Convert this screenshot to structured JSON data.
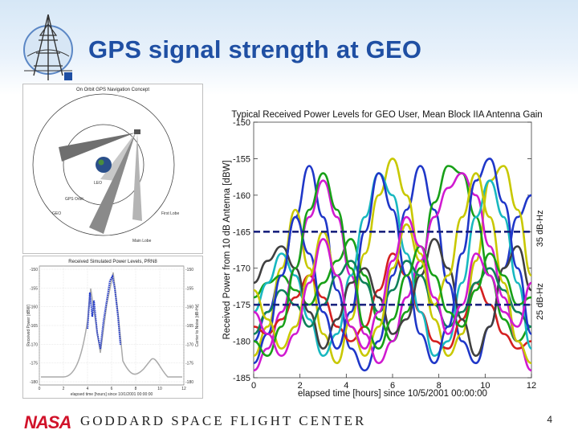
{
  "slide": {
    "title": "GPS signal strength at GEO",
    "footer_org": "GODDARD SPACE FLIGHT CENTER",
    "footer_logo": "NASA",
    "page_number": "4"
  },
  "panels": {
    "orbit_title": "On Orbit GPS Navigation Concept",
    "orbit_labels": [
      "LEO",
      "GPS Orbit",
      "GEO",
      "First Lobe",
      "Main Lobe"
    ],
    "sim_title": "Received Simulated Power Levels, PRN8",
    "sim_xlabel": "elapsed time [hours] since 10/1/2001 00:00:00",
    "sim_ylabel_left": "Received Power [dBW]",
    "sim_ylabel_right": "Carrier to Noise [dB-Hz]",
    "sim_xticks": [
      "0",
      "2",
      "4",
      "6",
      "8",
      "10",
      "12"
    ],
    "sim_yticks_left": [
      "-150",
      "-155",
      "-160",
      "-165",
      "-170",
      "-175",
      "-180"
    ],
    "sim_yticks_right": [
      "-150",
      "-155",
      "-160",
      "-165",
      "-170",
      "-175",
      "-180"
    ]
  },
  "colors": {
    "title_blue": "#1f4fa3",
    "nasa_red": "#d1122a",
    "threshold_navy": "#1a237e"
  },
  "chart_data": {
    "type": "line",
    "title": "Typical Received Power Levels for GEO User, Mean Block IIA Antenna Gain",
    "xlabel": "elapsed time [hours] since 10/5/2001 00:00:00",
    "ylabel": "Received Power from 10 dB Antenna [dBW]",
    "xlim": [
      0,
      12
    ],
    "ylim": [
      -185,
      -150
    ],
    "xticks": [
      0,
      2,
      4,
      6,
      8,
      10,
      12
    ],
    "yticks": [
      -150,
      -155,
      -160,
      -165,
      -170,
      -175,
      -180,
      -185
    ],
    "thresholds": [
      {
        "value": -165,
        "label": "35 dB-Hz"
      },
      {
        "value": -175,
        "label": "25 dB-Hz"
      }
    ],
    "series": [
      {
        "color": "#1f37c8",
        "x": [
          0,
          0.6,
          1.2,
          1.8,
          2.4,
          3.0,
          3.6,
          4.2,
          4.8,
          5.4,
          6.0,
          6.6,
          7.2,
          7.8,
          8.4,
          9.0,
          9.6,
          10.2,
          10.8,
          11.4,
          12
        ],
        "y": [
          -180,
          -176,
          -171,
          -163,
          -156,
          -163,
          -173,
          -181,
          -184,
          -180,
          -171,
          -162,
          -156,
          -162,
          -172,
          -180,
          -183,
          -178,
          -170,
          -163,
          -160
        ]
      },
      {
        "color": "#c8c800",
        "x": [
          0,
          0.6,
          1.2,
          1.8,
          2.4,
          3.0,
          3.6,
          4.2,
          4.8,
          5.4,
          6.0,
          6.6,
          7.2,
          7.8,
          8.4,
          9.0,
          9.6,
          10.2,
          10.8,
          11.4,
          12
        ],
        "y": [
          -182,
          -178,
          -170,
          -162,
          -170,
          -179,
          -183,
          -177,
          -168,
          -160,
          -155,
          -160,
          -168,
          -177,
          -182,
          -179,
          -169,
          -158,
          -156,
          -162,
          -171
        ]
      },
      {
        "color": "#18a018",
        "x": [
          0,
          0.6,
          1.2,
          1.8,
          2.4,
          3.0,
          3.6,
          4.2,
          4.8,
          5.4,
          6.0,
          6.6,
          7.2,
          7.8,
          8.4,
          9.0,
          9.6,
          10.2,
          10.8,
          11.4,
          12
        ],
        "y": [
          -174,
          -172,
          -171,
          -173,
          -175,
          -172,
          -169,
          -166,
          -171,
          -177,
          -180,
          -176,
          -170,
          -161,
          -156,
          -157,
          -163,
          -171,
          -177,
          -180,
          -178
        ]
      },
      {
        "color": "#d01ad0",
        "x": [
          0,
          0.6,
          1.2,
          1.8,
          2.4,
          3.0,
          3.6,
          4.2,
          4.8,
          5.4,
          6.0,
          6.6,
          7.2,
          7.8,
          8.4,
          9.0,
          9.6,
          10.2,
          10.8,
          11.4,
          12
        ],
        "y": [
          -184,
          -181,
          -176,
          -170,
          -163,
          -158,
          -163,
          -171,
          -179,
          -183,
          -180,
          -174,
          -169,
          -163,
          -159,
          -157,
          -160,
          -167,
          -174,
          -180,
          -184
        ]
      },
      {
        "color": "#d42020",
        "x": [
          0,
          0.6,
          1.2,
          1.8,
          2.4,
          3.0,
          3.6,
          4.2,
          4.8,
          5.4,
          6.0,
          6.6,
          7.2,
          7.8,
          8.4,
          9.0,
          9.6,
          10.2,
          10.8,
          11.4,
          12
        ],
        "y": [
          -178,
          -179,
          -177,
          -174,
          -171,
          -174,
          -178,
          -180,
          -178,
          -173,
          -168,
          -171,
          -176,
          -180,
          -181,
          -177,
          -172,
          -175,
          -179,
          -181,
          -180
        ]
      },
      {
        "color": "#18b8c0",
        "x": [
          0,
          0.6,
          1.2,
          1.8,
          2.4,
          3.0,
          3.6,
          4.2,
          4.8,
          5.4,
          6.0,
          6.6,
          7.2,
          7.8,
          8.4,
          9.0,
          9.6,
          10.2,
          10.8,
          11.4,
          12
        ],
        "y": [
          -176,
          -172,
          -168,
          -171,
          -177,
          -182,
          -179,
          -171,
          -163,
          -157,
          -160,
          -168,
          -176,
          -182,
          -180,
          -172,
          -163,
          -158,
          -163,
          -172,
          -181
        ]
      },
      {
        "color": "#404040",
        "x": [
          0,
          0.6,
          1.2,
          1.8,
          2.4,
          3.0,
          3.6,
          4.2,
          4.8,
          5.4,
          6.0,
          6.6,
          7.2,
          7.8,
          8.4,
          9.0,
          9.6,
          10.2,
          10.8,
          11.4,
          12
        ],
        "y": [
          -172,
          -169,
          -167,
          -170,
          -176,
          -181,
          -177,
          -172,
          -170,
          -174,
          -179,
          -177,
          -171,
          -166,
          -170,
          -177,
          -182,
          -178,
          -170,
          -167,
          -173
        ]
      },
      {
        "color": "#10805a",
        "x": [
          0,
          0.6,
          1.2,
          1.8,
          2.4,
          3.0,
          3.6,
          4.2,
          4.8,
          5.4,
          6.0,
          6.6,
          7.2,
          7.8,
          8.4,
          9.0,
          9.6,
          10.2,
          10.8,
          11.4,
          12
        ],
        "y": [
          -179,
          -176,
          -173,
          -175,
          -178,
          -175,
          -171,
          -169,
          -172,
          -176,
          -173,
          -169,
          -171,
          -175,
          -178,
          -176,
          -172,
          -170,
          -173,
          -176,
          -178
        ]
      },
      {
        "color": "#1f37c8",
        "x": [
          0,
          0.6,
          1.2,
          1.8,
          2.4,
          3.0,
          3.6,
          4.2,
          4.8,
          5.4,
          6.0,
          6.6,
          7.2,
          7.8,
          8.4,
          9.0,
          9.6,
          10.2,
          10.8,
          11.4,
          12
        ],
        "y": [
          -183,
          -179,
          -171,
          -163,
          -168,
          -176,
          -181,
          -176,
          -165,
          -157,
          -162,
          -171,
          -179,
          -183,
          -178,
          -168,
          -158,
          -155,
          -161,
          -170,
          -179
        ]
      },
      {
        "color": "#c8c800",
        "x": [
          0,
          0.6,
          1.2,
          1.8,
          2.4,
          3.0,
          3.6,
          4.2,
          4.8,
          5.4,
          6.0,
          6.6,
          7.2,
          7.8,
          8.4,
          9.0,
          9.6,
          10.2,
          10.8,
          11.4,
          12
        ],
        "y": [
          -173,
          -177,
          -181,
          -178,
          -171,
          -165,
          -171,
          -178,
          -182,
          -178,
          -170,
          -164,
          -169,
          -175,
          -171,
          -163,
          -157,
          -163,
          -172,
          -180,
          -183
        ]
      },
      {
        "color": "#18a018",
        "x": [
          0,
          0.6,
          1.2,
          1.8,
          2.4,
          3.0,
          3.6,
          4.2,
          4.8,
          5.4,
          6.0,
          6.6,
          7.2,
          7.8,
          8.4,
          9.0,
          9.6,
          10.2,
          10.8,
          11.4,
          12
        ],
        "y": [
          -180,
          -182,
          -178,
          -170,
          -162,
          -157,
          -162,
          -170,
          -178,
          -181,
          -177,
          -171,
          -167,
          -171,
          -176,
          -178,
          -173,
          -168,
          -171,
          -175,
          -174
        ]
      },
      {
        "color": "#d01ad0",
        "x": [
          0,
          0.6,
          1.2,
          1.8,
          2.4,
          3.0,
          3.6,
          4.2,
          4.8,
          5.4,
          6.0,
          6.6,
          7.2,
          7.8,
          8.4,
          9.0,
          9.6,
          10.2,
          10.8,
          11.4,
          12
        ],
        "y": [
          -176,
          -179,
          -182,
          -179,
          -172,
          -166,
          -171,
          -178,
          -181,
          -176,
          -169,
          -163,
          -167,
          -174,
          -179,
          -175,
          -168,
          -171,
          -176,
          -178,
          -172
        ]
      }
    ]
  }
}
